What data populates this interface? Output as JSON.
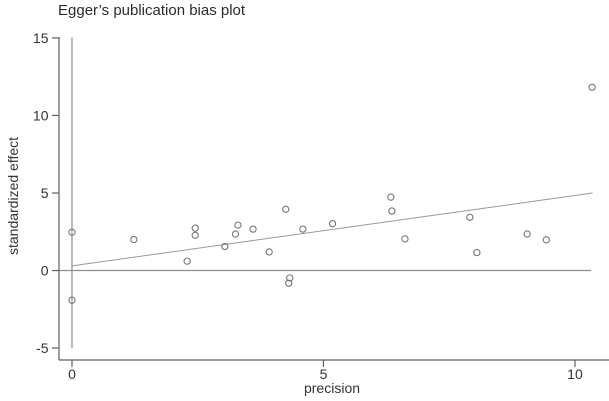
{
  "chart_data": {
    "type": "scatter",
    "title": "Egger’s publication bias plot",
    "xlabel": "precision",
    "ylabel": "standardized effect",
    "xlim": [
      -0.258,
      10.597
    ],
    "ylim": [
      -5.77,
      15.06
    ],
    "x_ticks": [
      0,
      5,
      10
    ],
    "y_ticks": [
      15,
      10,
      5,
      0,
      -5
    ],
    "grid": false,
    "legend": "none",
    "points": [
      [
        0,
        2.47
      ],
      [
        0,
        -1.92
      ],
      [
        1.23,
        2.0
      ],
      [
        2.29,
        0.6
      ],
      [
        2.45,
        2.73
      ],
      [
        2.45,
        2.27
      ],
      [
        3.04,
        1.55
      ],
      [
        3.25,
        2.35
      ],
      [
        3.3,
        2.93
      ],
      [
        3.6,
        2.67
      ],
      [
        3.92,
        1.2
      ],
      [
        4.25,
        3.95
      ],
      [
        4.31,
        -0.82
      ],
      [
        4.33,
        -0.48
      ],
      [
        4.59,
        2.67
      ],
      [
        5.18,
        3.02
      ],
      [
        6.34,
        4.73
      ],
      [
        6.36,
        3.84
      ],
      [
        6.62,
        2.04
      ],
      [
        7.91,
        3.43
      ],
      [
        8.05,
        1.16
      ],
      [
        9.05,
        2.35
      ],
      [
        9.43,
        1.98
      ],
      [
        10.34,
        11.82
      ]
    ],
    "regression_line": {
      "x1": 0,
      "y1": 0.3,
      "x2": 10.35,
      "y2": 5.0
    },
    "vertical_reference_line": {
      "x": 0,
      "y1": -5,
      "y2": 15.03
    },
    "horizontal_reference_line": {
      "y": 0,
      "x1": -0.258,
      "x2": 10.32
    },
    "colors": {
      "background": "#ffffff",
      "axis": "#5f5f5f",
      "reference_line": "#8f8f8f",
      "regression_line": "#999999",
      "marker_outline": "#767676",
      "title_text": "#2b2b2b",
      "label_text": "#333333"
    }
  }
}
